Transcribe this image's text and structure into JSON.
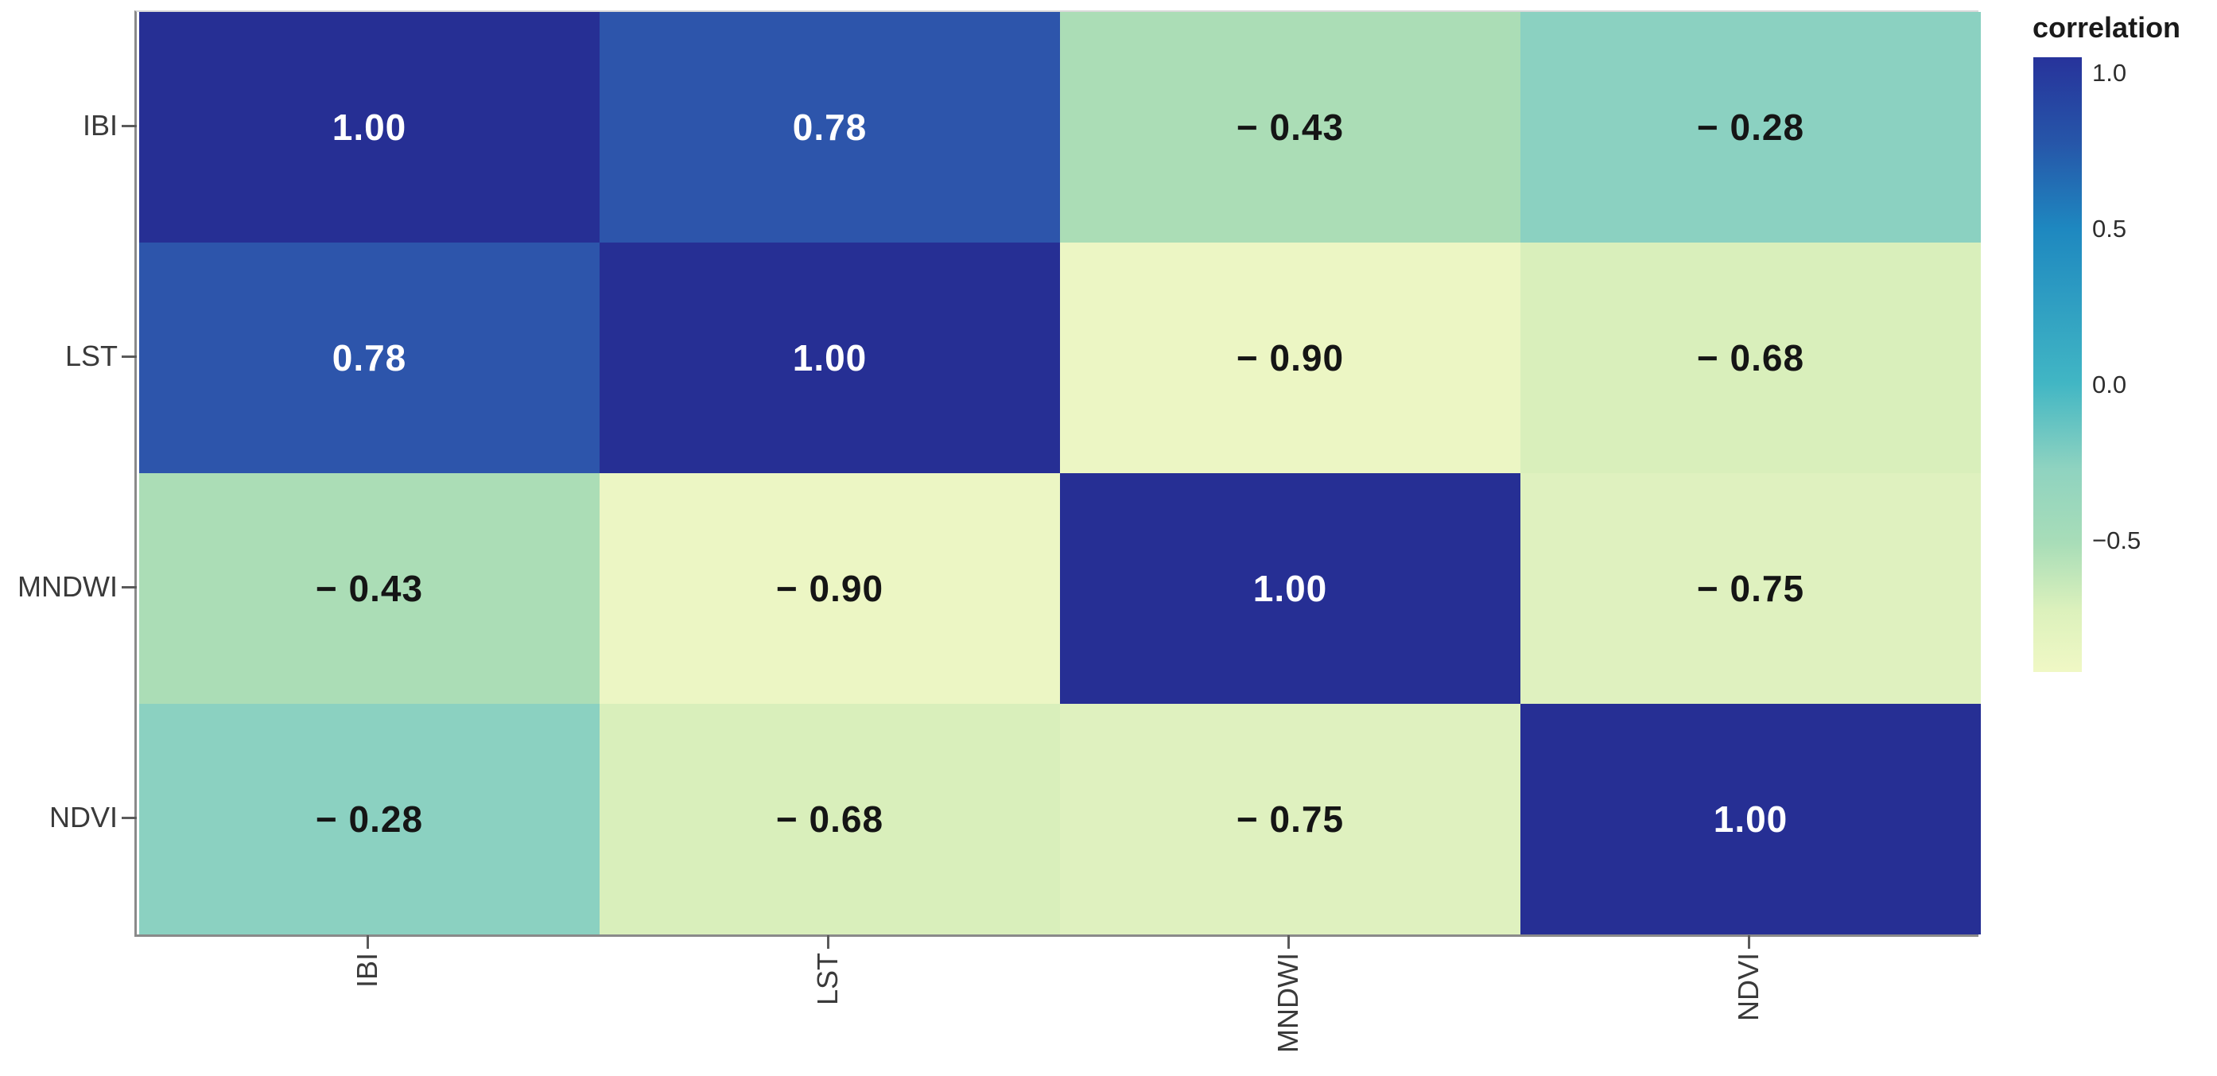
{
  "chart_data": {
    "type": "heatmap",
    "title": "",
    "x_categories": [
      "IBI",
      "LST",
      "MNDWI",
      "NDVI"
    ],
    "y_categories": [
      "IBI",
      "LST",
      "MNDWI",
      "NDVI"
    ],
    "matrix": [
      [
        1.0,
        0.78,
        -0.43,
        -0.28
      ],
      [
        0.78,
        1.0,
        -0.9,
        -0.68
      ],
      [
        -0.43,
        -0.9,
        1.0,
        -0.75
      ],
      [
        -0.28,
        -0.68,
        -0.75,
        1.0
      ]
    ],
    "cell_labels": [
      [
        "1.00",
        "0.78",
        "− 0.43",
        "− 0.28"
      ],
      [
        "0.78",
        "1.00",
        "− 0.90",
        "− 0.68"
      ],
      [
        "− 0.43",
        "− 0.90",
        "1.00",
        "− 0.75"
      ],
      [
        "− 0.28",
        "− 0.68",
        "− 0.75",
        "1.00"
      ]
    ],
    "cell_colors": [
      [
        "#262f94",
        "#2d55ab",
        "#abddb6",
        "#8bd1c1"
      ],
      [
        "#2d55ab",
        "#262f94",
        "#ecf6c4",
        "#d9efbb"
      ],
      [
        "#abddb6",
        "#ecf6c4",
        "#262f94",
        "#dff1bf"
      ],
      [
        "#8bd1c1",
        "#d9efbb",
        "#dff1bf",
        "#262f94"
      ]
    ],
    "legend": {
      "title": "correlation",
      "tick_labels": [
        "1.0",
        "0.5",
        "0.0",
        "−0.5"
      ],
      "tick_values": [
        1.0,
        0.5,
        0.0,
        -0.5
      ],
      "scale_top": 1.05,
      "scale_bottom": -0.92,
      "position": "right",
      "gradient_stops": [
        {
          "pos": 0,
          "color": "#27339b"
        },
        {
          "pos": 14,
          "color": "#2656a9"
        },
        {
          "pos": 28,
          "color": "#1e88c0"
        },
        {
          "pos": 53,
          "color": "#41b6c4"
        },
        {
          "pos": 67,
          "color": "#8fd3c0"
        },
        {
          "pos": 79,
          "color": "#a8ddb8"
        },
        {
          "pos": 90,
          "color": "#dcf1bc"
        },
        {
          "pos": 100,
          "color": "#f0f8c5"
        }
      ]
    },
    "grid": false,
    "xlabel": "",
    "ylabel": ""
  },
  "colors": {
    "background": "#ffffff",
    "axis_text": "#3a3a3a",
    "axis_line": "#8a8a8a",
    "tick_mark": "#5a5a5a",
    "value_text_light": "#ffffff",
    "value_text_dark": "#151515"
  }
}
